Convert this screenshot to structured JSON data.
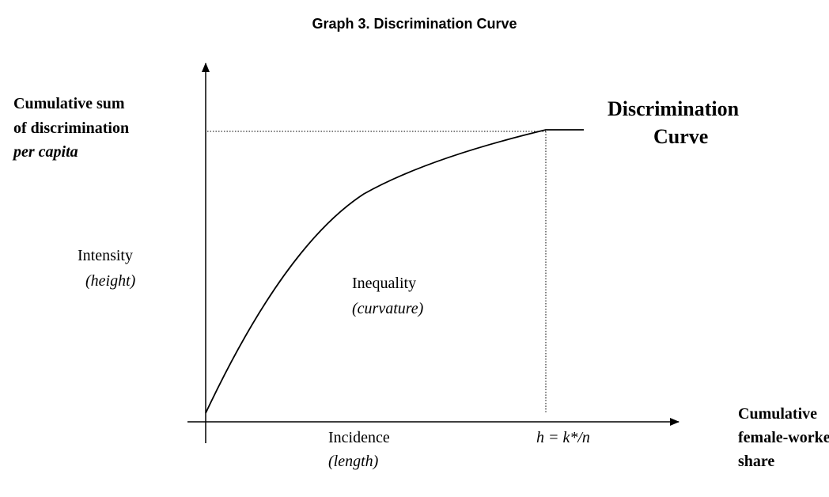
{
  "title": "Graph 3. Discrimination Curve",
  "y_axis_label": {
    "lines": [
      "Cumulative sum",
      "of discrimination"
    ],
    "emphasis": "per capita"
  },
  "curve_label": [
    "Discrimination",
    "Curve"
  ],
  "x_axis_label": [
    "Cumulative",
    "female-worker",
    "share"
  ],
  "annotations": {
    "intensity": {
      "label": "Intensity",
      "note": "(height)"
    },
    "inequality": {
      "label": "Inequality",
      "note": "(curvature)"
    },
    "incidence": {
      "label": "Incidence",
      "note": "(length)"
    },
    "threshold": "h = k*/n"
  }
}
